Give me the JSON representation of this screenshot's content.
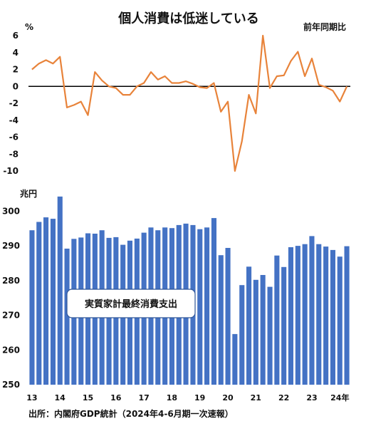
{
  "chart_data": [
    {
      "type": "line",
      "title": "個人消費は低迷している",
      "ylabel": "%",
      "series_label": "前年同期比",
      "ylim": [
        -10,
        6
      ],
      "yticks": [
        6,
        4,
        2,
        0,
        -2,
        -4,
        -6,
        -8,
        -10
      ],
      "color": "#e8833a",
      "values": [
        2.0,
        2.7,
        3.1,
        2.7,
        3.5,
        -2.5,
        -2.2,
        -1.8,
        -3.4,
        1.7,
        0.7,
        0.0,
        -0.2,
        -1.0,
        -1.0,
        0.0,
        0.4,
        1.7,
        0.8,
        1.2,
        0.4,
        0.4,
        0.6,
        0.3,
        -0.1,
        -0.2,
        0.4,
        -3.0,
        -1.8,
        -10.0,
        -6.5,
        -1.0,
        -3.2,
        6.0,
        -0.2,
        1.2,
        1.3,
        3.0,
        4.1,
        1.2,
        3.3,
        0.2,
        -0.1,
        -0.5,
        -1.8,
        0.0
      ]
    },
    {
      "type": "bar",
      "ylabel": "兆円",
      "legend": "実質家計最終消費支出",
      "ylim": [
        250,
        305
      ],
      "yticks": [
        300,
        290,
        280,
        270,
        260,
        250
      ],
      "color": "#4472c4",
      "x_tick_labels": [
        "13",
        "14",
        "15",
        "16",
        "17",
        "18",
        "19",
        "20",
        "21",
        "22",
        "23",
        "24年"
      ],
      "values": [
        294.5,
        296.9,
        298.2,
        297.8,
        304.2,
        289.2,
        292.0,
        292.4,
        293.6,
        293.5,
        294.5,
        292.3,
        292.5,
        290.3,
        291.5,
        292.1,
        293.8,
        295.3,
        294.5,
        295.3,
        295.1,
        296.0,
        296.4,
        296.0,
        294.8,
        295.3,
        298.0,
        287.3,
        289.4,
        264.6,
        278.7,
        284.0,
        280.2,
        281.6,
        278.2,
        287.2,
        283.9,
        289.6,
        290.0,
        290.5,
        292.8,
        290.5,
        289.8,
        288.8,
        286.9,
        289.9
      ]
    }
  ],
  "source": "出所：内閣府GDP統計（2024年4-6月期一次速報）"
}
